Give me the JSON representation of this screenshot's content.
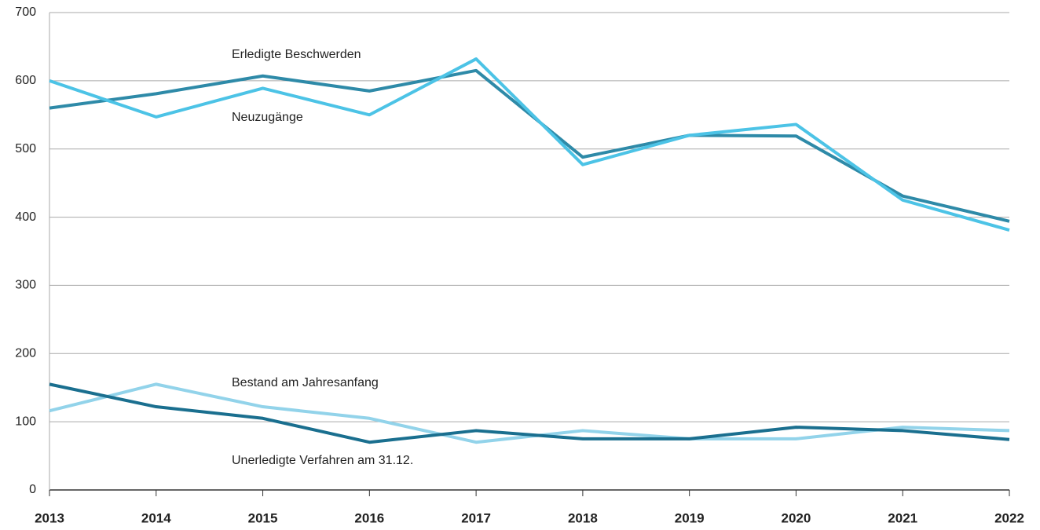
{
  "chart_data": {
    "type": "line",
    "categories": [
      "2013",
      "2014",
      "2015",
      "2016",
      "2017",
      "2018",
      "2019",
      "2020",
      "2021",
      "2022"
    ],
    "series": [
      {
        "name": "Erledigte Beschwerden",
        "color": "#2e8aa8",
        "values": [
          560,
          581,
          607,
          585,
          615,
          488,
          520,
          519,
          431,
          394
        ]
      },
      {
        "name": "Neuzugänge",
        "color": "#4cc3e6",
        "values": [
          600,
          547,
          589,
          550,
          632,
          477,
          520,
          536,
          425,
          381
        ]
      },
      {
        "name": "Bestand am Jahresanfang",
        "color": "#92d3ea",
        "values": [
          116,
          155,
          122,
          105,
          70,
          87,
          75,
          75,
          92,
          87
        ]
      },
      {
        "name": "Unerledigte Verfahren am 31.12.",
        "color": "#1a6f8f",
        "values": [
          155,
          122,
          105,
          70,
          87,
          75,
          75,
          92,
          87,
          74
        ]
      }
    ],
    "ylim": [
      0,
      700
    ],
    "yticks": [
      0,
      100,
      200,
      300,
      400,
      500,
      600,
      700
    ],
    "grid": true
  }
}
